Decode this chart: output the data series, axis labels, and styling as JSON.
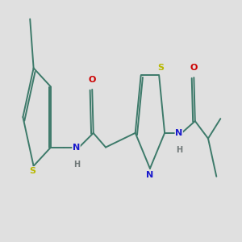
{
  "bg_color": "#e0e0e0",
  "bond_color": "#3d7a6a",
  "bond_lw": 1.4,
  "S_color": "#b8b800",
  "N_color": "#1a1acc",
  "O_color": "#cc0000",
  "H_color": "#707878",
  "font_size": 7.5,
  "figsize": [
    3.0,
    3.0
  ],
  "dpi": 100,
  "xlim": [
    0,
    10
  ],
  "ylim": [
    3.5,
    6.5
  ]
}
